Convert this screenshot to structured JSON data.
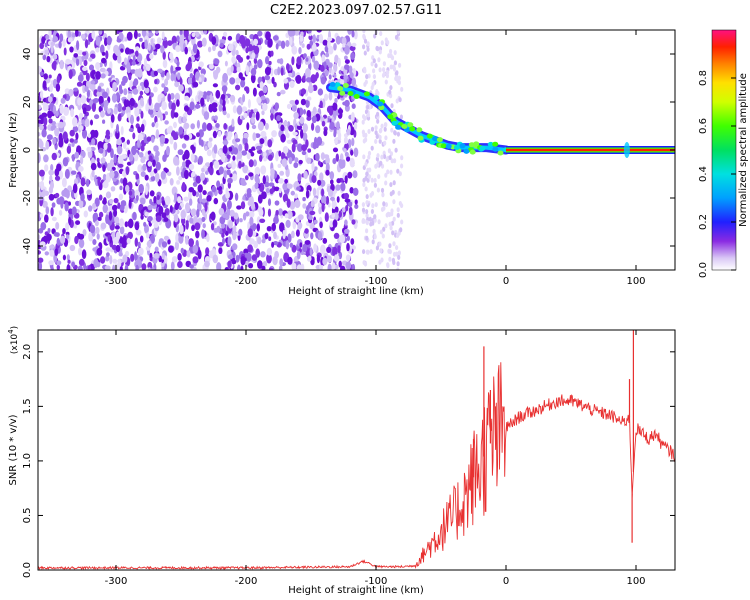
{
  "title": "C2E2.2023.097.02.57.G11",
  "chart_data": [
    {
      "type": "heatmap",
      "name": "spectrogram",
      "xlabel": "Height of straight line (km)",
      "ylabel": "Frequency (Hz)",
      "xlim": [
        -360,
        130
      ],
      "ylim": [
        -50,
        50
      ],
      "xticks": [
        -300,
        -200,
        -100,
        0,
        100
      ],
      "yticks": [
        -40,
        -20,
        0,
        20,
        40
      ],
      "xtick_labels": [
        "-300",
        "-200",
        "-100",
        "0",
        "100"
      ],
      "ytick_labels": [
        "-40",
        "-20",
        "0",
        "20",
        "40"
      ],
      "noise_region": {
        "x_from": -360,
        "x_to": -80,
        "freq_from": -50,
        "freq_to": 50
      },
      "trail": [
        {
          "x": -135,
          "freq": 26
        },
        {
          "x": -120,
          "freq": 25
        },
        {
          "x": -105,
          "freq": 22
        },
        {
          "x": -95,
          "freq": 18
        },
        {
          "x": -85,
          "freq": 12
        },
        {
          "x": -75,
          "freq": 9
        },
        {
          "x": -65,
          "freq": 6
        },
        {
          "x": -55,
          "freq": 4
        },
        {
          "x": -45,
          "freq": 2
        },
        {
          "x": -35,
          "freq": 1
        },
        {
          "x": -25,
          "freq": 1
        },
        {
          "x": -15,
          "freq": 1
        },
        {
          "x": 0,
          "freq": 0
        }
      ],
      "steady_tone": {
        "x_from": 0,
        "x_to": 130,
        "freq": 0
      },
      "colorbar": {
        "label": "Normalized spectral amplitude",
        "range": [
          0,
          1
        ],
        "ticks": [
          0.0,
          0.2,
          0.4,
          0.6,
          0.8
        ],
        "tick_labels": [
          "0.0",
          "0.2",
          "0.4",
          "0.6",
          "0.8"
        ]
      }
    },
    {
      "type": "line",
      "name": "snr",
      "xlabel": "Height of straight line (km)",
      "ylabel": "SNR (10 * v/v)",
      "y_multiplier": "(x10",
      "y_multiplier_exp": "4",
      "y_multiplier_close": ")",
      "xlim": [
        -360,
        130
      ],
      "ylim": [
        0,
        2.2
      ],
      "xticks": [
        -300,
        -200,
        -100,
        0,
        100
      ],
      "yticks": [
        0.0,
        0.5,
        1.0,
        1.5,
        2.0
      ],
      "xtick_labels": [
        "-300",
        "-200",
        "-100",
        "0",
        "100"
      ],
      "ytick_labels": [
        "0.0",
        "0.5",
        "1.0",
        "1.5",
        "2.0"
      ],
      "color": "#e83030",
      "series": [
        {
          "name": "SNR",
          "x": [
            -360,
            -300,
            -200,
            -120,
            -110,
            -105,
            -100,
            -90,
            -80,
            -70,
            -60,
            -50,
            -40,
            -30,
            -25,
            -20,
            -15,
            -10,
            -5,
            0,
            10,
            20,
            30,
            40,
            50,
            60,
            70,
            80,
            90,
            95,
            97,
            100,
            105,
            110,
            115,
            120,
            125,
            130
          ],
          "y": [
            0.02,
            0.02,
            0.02,
            0.03,
            0.08,
            0.06,
            0.03,
            0.03,
            0.03,
            0.04,
            0.2,
            0.35,
            0.5,
            0.7,
            0.85,
            0.95,
            1.1,
            1.2,
            1.25,
            1.3,
            1.4,
            1.45,
            1.5,
            1.55,
            1.55,
            1.5,
            1.45,
            1.42,
            1.35,
            1.4,
            0.7,
            1.3,
            1.25,
            1.2,
            1.25,
            1.15,
            1.1,
            1.05
          ]
        }
      ],
      "spikes": [
        {
          "x": -17,
          "y": 2.05
        },
        {
          "x": -25,
          "y": 1.2
        },
        {
          "x": -12,
          "y": 1.65
        },
        {
          "x": -8,
          "y": 1.5
        },
        {
          "x": 95,
          "y": 1.75
        },
        {
          "x": 98,
          "y": 2.2
        },
        {
          "x": 97,
          "y": 0.25
        }
      ]
    }
  ]
}
